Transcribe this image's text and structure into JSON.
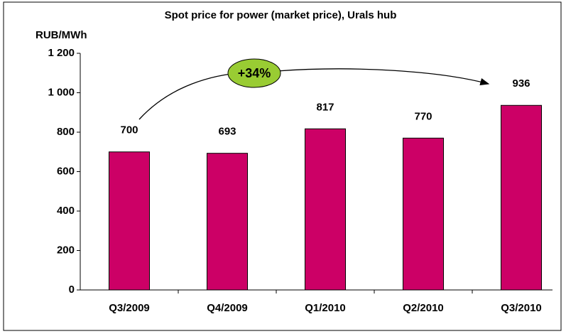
{
  "chart_data": {
    "type": "bar",
    "title": "Spot price for power (market price), Urals hub",
    "y_axis_label": "RUB/MWh",
    "categories": [
      "Q3/2009",
      "Q4/2009",
      "Q1/2010",
      "Q2/2010",
      "Q3/2010"
    ],
    "values": [
      700,
      693,
      817,
      770,
      936
    ],
    "color": "#cc0066",
    "ylim": [
      0,
      1200
    ],
    "yticks": [
      0,
      200,
      400,
      600,
      800,
      {
        "value": 1000,
        "label": "1 000"
      },
      {
        "value": 1200,
        "label": "1 200"
      }
    ],
    "grid": false,
    "annotation": "+34%"
  }
}
